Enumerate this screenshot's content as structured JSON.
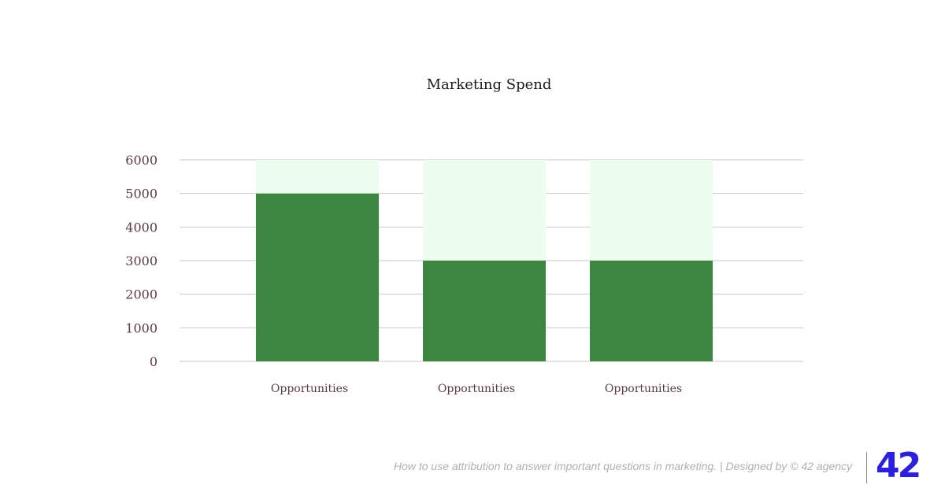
{
  "chart_data": {
    "type": "bar",
    "title": "Marketing Spend",
    "categories": [
      "Opportunities",
      "Opportunities",
      "Opportunities"
    ],
    "series": [
      {
        "values": [
          5000,
          3000,
          3000
        ],
        "color": "#3d8640"
      },
      {
        "values": [
          1000,
          3000,
          3000
        ],
        "color": "#edfdef"
      }
    ],
    "stacked": true,
    "ylim": [
      0,
      6000
    ],
    "yticks": [
      "0",
      "1000",
      "2000",
      "3000",
      "4000",
      "5000",
      "6000"
    ],
    "xlabel": "",
    "ylabel": "",
    "grid": true,
    "legend": "none"
  },
  "footer": {
    "caption": "How to use attribution to answer important questions in marketing. | Designed by © 42 agency",
    "logo_text": "42",
    "logo_color": "#2b1fe0"
  }
}
